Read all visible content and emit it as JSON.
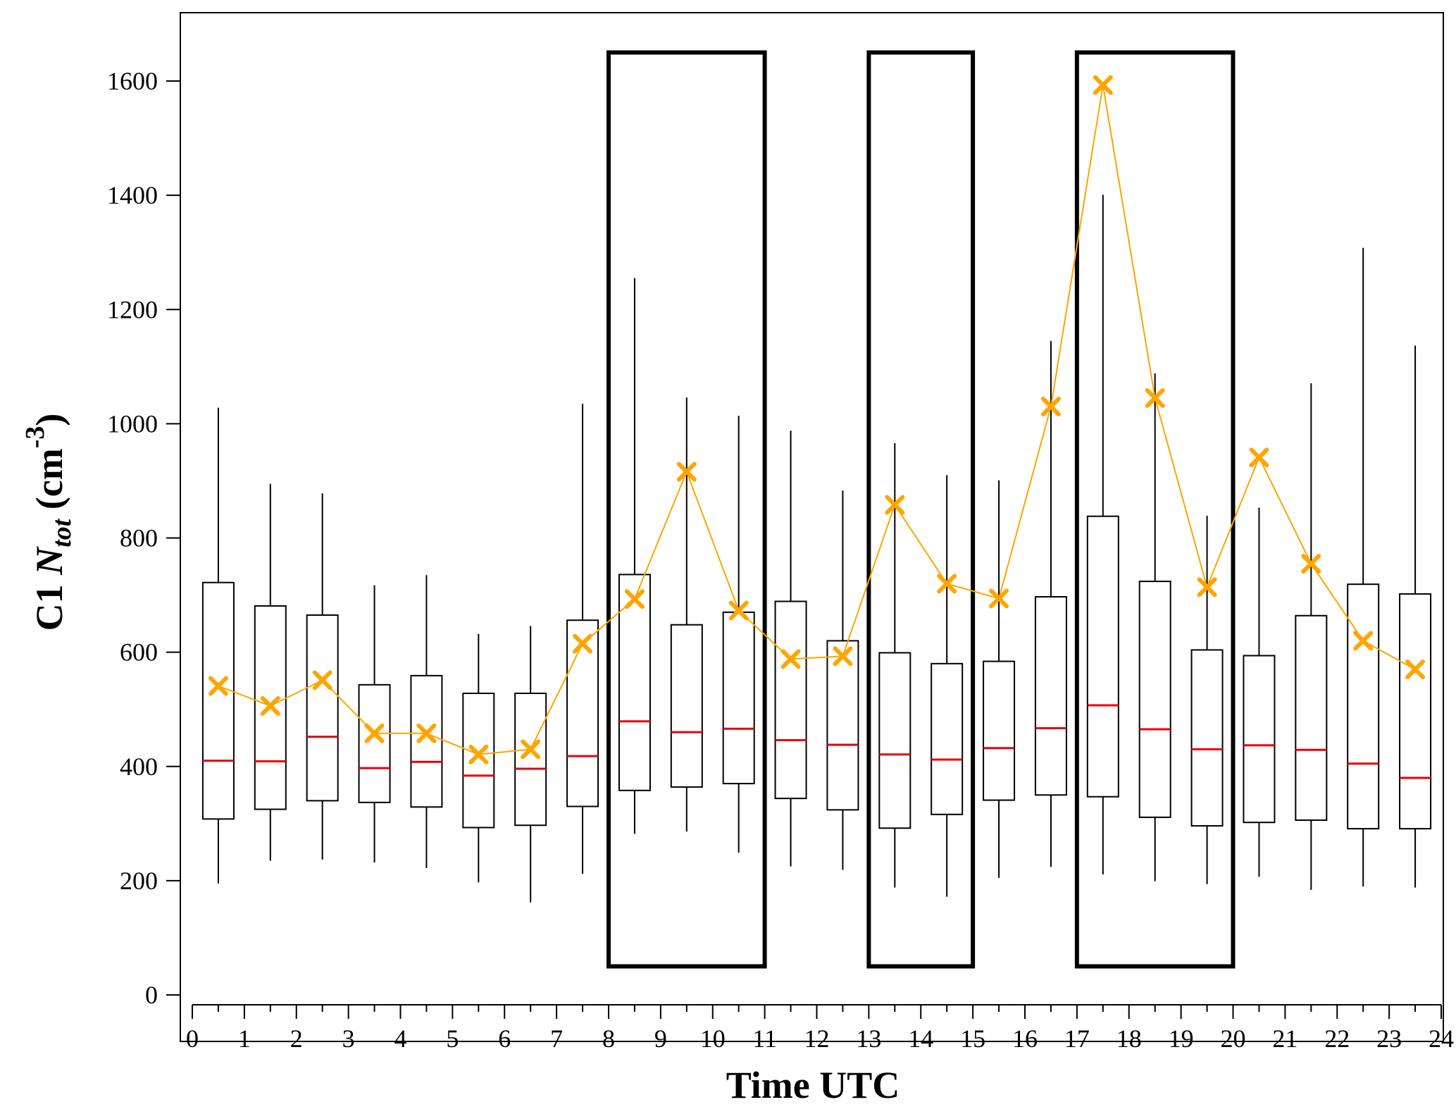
{
  "chart_data": {
    "type": "box",
    "xlabel": "Time UTC",
    "ylabel": {
      "prefix": "C1 ",
      "symbol": "N",
      "subscript": "tot",
      "unit_open": " (cm",
      "superscript": "-3",
      "unit_close": ")"
    },
    "xlim": [
      0,
      24
    ],
    "ylim": [
      -40,
      1720
    ],
    "x_ticks": [
      0,
      1,
      2,
      3,
      4,
      5,
      6,
      7,
      8,
      9,
      10,
      11,
      12,
      13,
      14,
      15,
      16,
      17,
      18,
      19,
      20,
      21,
      22,
      23,
      24
    ],
    "y_ticks": [
      0,
      200,
      400,
      600,
      800,
      1000,
      1200,
      1400,
      1600
    ],
    "boxes": [
      {
        "x": 0.5,
        "whisker_low": 195,
        "q1": 308,
        "median": 410,
        "q3": 722,
        "whisker_high": 1028,
        "mean": 541
      },
      {
        "x": 1.5,
        "whisker_low": 235,
        "q1": 325,
        "median": 409,
        "q3": 681,
        "whisker_high": 895,
        "mean": 506
      },
      {
        "x": 2.5,
        "whisker_low": 237,
        "q1": 340,
        "median": 452,
        "q3": 665,
        "whisker_high": 878,
        "mean": 551
      },
      {
        "x": 3.5,
        "whisker_low": 232,
        "q1": 337,
        "median": 397,
        "q3": 543,
        "whisker_high": 717,
        "mean": 458
      },
      {
        "x": 4.5,
        "whisker_low": 222,
        "q1": 329,
        "median": 408,
        "q3": 559,
        "whisker_high": 735,
        "mean": 458
      },
      {
        "x": 5.5,
        "whisker_low": 197,
        "q1": 293,
        "median": 384,
        "q3": 528,
        "whisker_high": 632,
        "mean": 421
      },
      {
        "x": 6.5,
        "whisker_low": 162,
        "q1": 297,
        "median": 396,
        "q3": 528,
        "whisker_high": 646,
        "mean": 430
      },
      {
        "x": 7.5,
        "whisker_low": 212,
        "q1": 330,
        "median": 418,
        "q3": 656,
        "whisker_high": 1035,
        "mean": 615
      },
      {
        "x": 8.5,
        "whisker_low": 282,
        "q1": 358,
        "median": 479,
        "q3": 736,
        "whisker_high": 1255,
        "mean": 693
      },
      {
        "x": 9.5,
        "whisker_low": 286,
        "q1": 364,
        "median": 460,
        "q3": 648,
        "whisker_high": 1046,
        "mean": 916
      },
      {
        "x": 10.5,
        "whisker_low": 249,
        "q1": 370,
        "median": 466,
        "q3": 670,
        "whisker_high": 1014,
        "mean": 673
      },
      {
        "x": 11.5,
        "whisker_low": 225,
        "q1": 344,
        "median": 446,
        "q3": 689,
        "whisker_high": 988,
        "mean": 588
      },
      {
        "x": 12.5,
        "whisker_low": 219,
        "q1": 324,
        "median": 438,
        "q3": 620,
        "whisker_high": 883,
        "mean": 593
      },
      {
        "x": 13.5,
        "whisker_low": 188,
        "q1": 292,
        "median": 421,
        "q3": 599,
        "whisker_high": 966,
        "mean": 858
      },
      {
        "x": 14.5,
        "whisker_low": 172,
        "q1": 316,
        "median": 412,
        "q3": 580,
        "whisker_high": 910,
        "mean": 720
      },
      {
        "x": 15.5,
        "whisker_low": 205,
        "q1": 341,
        "median": 432,
        "q3": 584,
        "whisker_high": 901,
        "mean": 694
      },
      {
        "x": 16.5,
        "whisker_low": 224,
        "q1": 350,
        "median": 467,
        "q3": 697,
        "whisker_high": 1145,
        "mean": 1030
      },
      {
        "x": 17.5,
        "whisker_low": 211,
        "q1": 347,
        "median": 507,
        "q3": 838,
        "whisker_high": 1401,
        "mean": 1593
      },
      {
        "x": 18.5,
        "whisker_low": 199,
        "q1": 311,
        "median": 465,
        "q3": 724,
        "whisker_high": 1088,
        "mean": 1045
      },
      {
        "x": 19.5,
        "whisker_low": 194,
        "q1": 296,
        "median": 430,
        "q3": 604,
        "whisker_high": 839,
        "mean": 714
      },
      {
        "x": 20.5,
        "whisker_low": 207,
        "q1": 302,
        "median": 437,
        "q3": 594,
        "whisker_high": 853,
        "mean": 941
      },
      {
        "x": 21.5,
        "whisker_low": 184,
        "q1": 306,
        "median": 429,
        "q3": 664,
        "whisker_high": 1071,
        "mean": 755
      },
      {
        "x": 22.5,
        "whisker_low": 190,
        "q1": 291,
        "median": 405,
        "q3": 719,
        "whisker_high": 1308,
        "mean": 620
      },
      {
        "x": 23.5,
        "whisker_low": 188,
        "q1": 291,
        "median": 380,
        "q3": 702,
        "whisker_high": 1137,
        "mean": 570
      }
    ],
    "highlight_boxes": [
      {
        "x_start": 8,
        "x_end": 11,
        "y_low": 50,
        "y_high": 1650
      },
      {
        "x_start": 13,
        "x_end": 15,
        "y_low": 50,
        "y_high": 1650
      },
      {
        "x_start": 17,
        "x_end": 20,
        "y_low": 50,
        "y_high": 1650
      }
    ],
    "colors": {
      "median": "#e8000b",
      "mean": "#ffa500",
      "box": "#000000",
      "highlight": "#000000"
    },
    "mean_marker": "x",
    "grid": false,
    "legend": "none"
  }
}
